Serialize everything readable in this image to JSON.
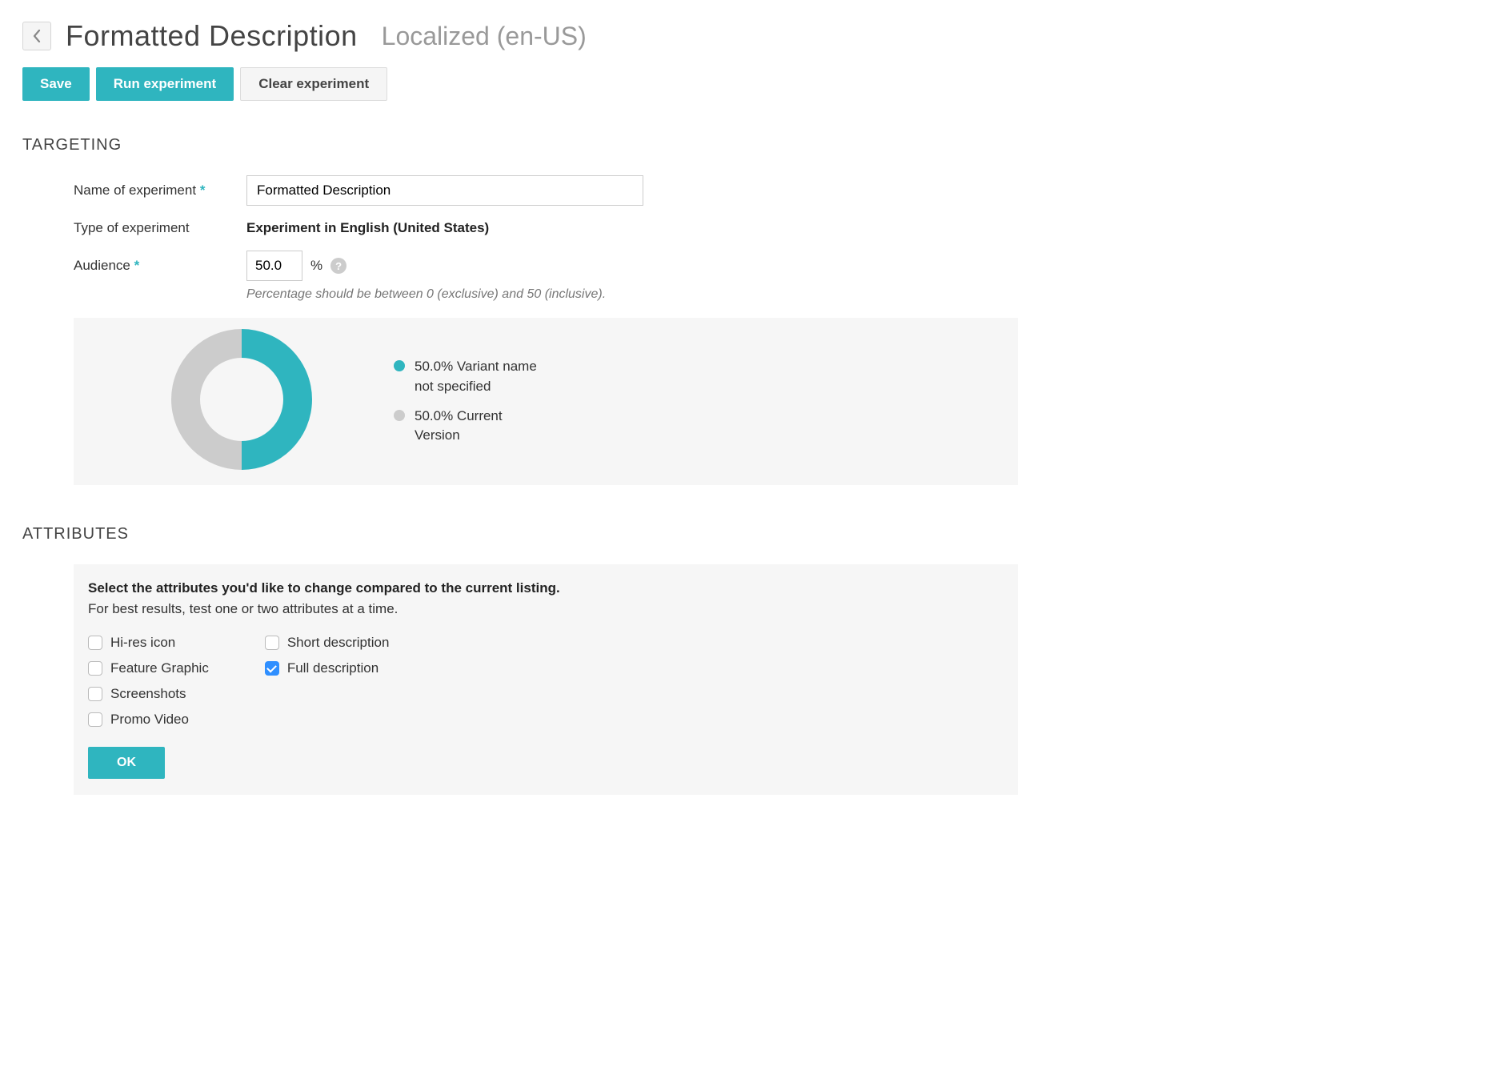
{
  "header": {
    "title": "Formatted Description",
    "subtitle": "Localized (en-US)"
  },
  "actions": {
    "save": "Save",
    "run": "Run experiment",
    "clear": "Clear experiment"
  },
  "targeting": {
    "heading": "TARGETING",
    "name_label": "Name of experiment",
    "name_value": "Formatted Description",
    "type_label": "Type of experiment",
    "type_value": "Experiment in English (United States)",
    "audience_label": "Audience",
    "audience_value": "50.0",
    "percent_sign": "%",
    "audience_hint": "Percentage should be between 0 (exclusive) and 50 (inclusive)."
  },
  "chart": {
    "type": "donut",
    "outer_radius": 88,
    "inner_radius": 52,
    "background": "#f6f6f6",
    "slices": [
      {
        "value": 50.0,
        "color": "#2fb5bf",
        "label": "50.0% Variant name not specified"
      },
      {
        "value": 50.0,
        "color": "#cccccc",
        "label": "50.0% Current Version"
      }
    ]
  },
  "attributes": {
    "heading": "ATTRIBUTES",
    "instr1": "Select the attributes you'd like to change compared to the current listing.",
    "instr2": "For best results, test one or two attributes at a time.",
    "col1": [
      {
        "label": "Hi-res icon",
        "checked": false
      },
      {
        "label": "Feature Graphic",
        "checked": false
      },
      {
        "label": "Screenshots",
        "checked": false
      },
      {
        "label": "Promo Video",
        "checked": false
      }
    ],
    "col2": [
      {
        "label": "Short description",
        "checked": false
      },
      {
        "label": "Full description",
        "checked": true
      }
    ],
    "ok": "OK"
  },
  "colors": {
    "primary": "#2fb5bf",
    "checkbox_checked": "#2f8fff",
    "panel_bg": "#f6f6f6",
    "muted_text": "#777777"
  }
}
